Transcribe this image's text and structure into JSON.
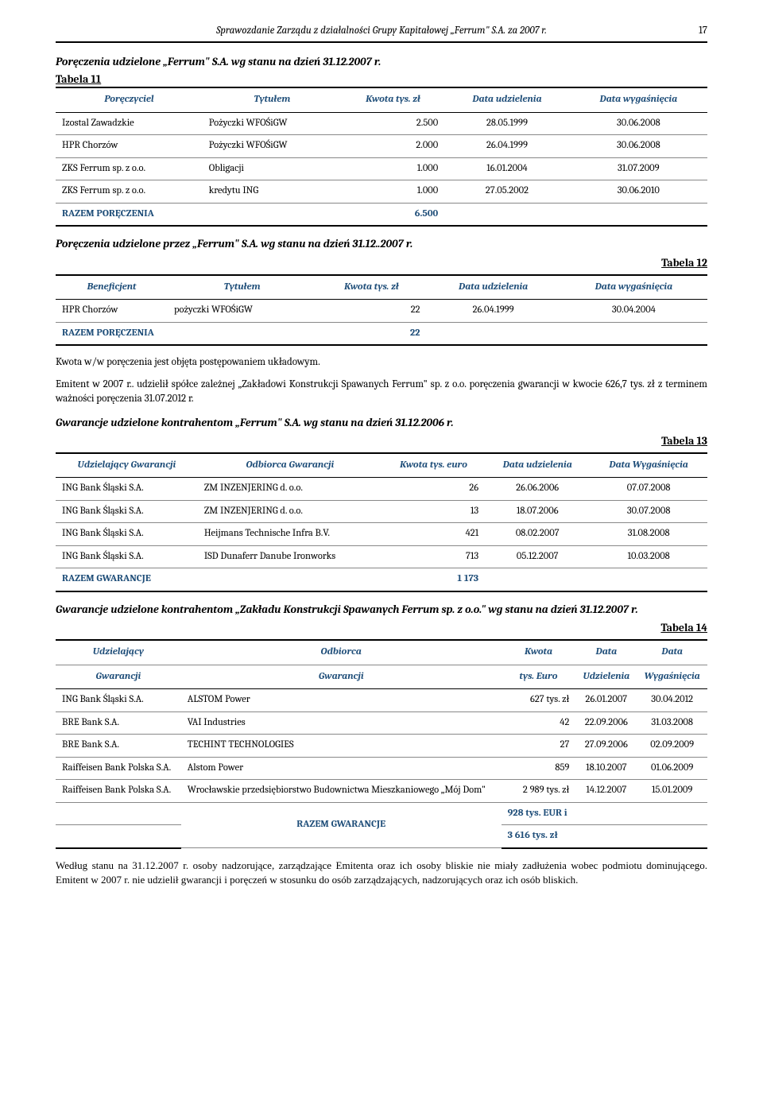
{
  "header": {
    "title": "Sprawozdanie Zarządu z działalności Grupy Kapitałowej „Ferrum\" S.A. za 2007 r.",
    "page": "17"
  },
  "section1": {
    "title": "Poręczenia udzielone „Ferrum\" S.A. wg stanu na dzień 31.12.2007 r.",
    "table_label": "Tabela 11",
    "headers": [
      "Poręczyciel",
      "Tytułem",
      "Kwota tys. zł",
      "Data udzielenia",
      "Data wygaśnięcia"
    ],
    "rows": [
      [
        "Izostal Zawadzkie",
        "Pożyczki WFOŚiGW",
        "2.500",
        "28.05.1999",
        "30.06.2008"
      ],
      [
        "HPR Chorzów",
        "Pożyczki WFOŚiGW",
        "2.000",
        "26.04.1999",
        "30.06.2008"
      ],
      [
        "ZKS Ferrum sp. z o.o.",
        "Obligacji",
        "1.000",
        "16.01.2004",
        "31.07.2009"
      ],
      [
        "ZKS Ferrum sp. z o.o.",
        "kredytu ING",
        "1.000",
        "27.05.2002",
        "30.06.2010"
      ]
    ],
    "razem_label": "RAZEM PORĘCZENIA",
    "razem_val": "6.500"
  },
  "section2": {
    "title": "Poręczenia udzielone przez „Ferrum\" S.A. wg stanu na dzień 31.12..2007 r.",
    "table_label": "Tabela 12",
    "headers": [
      "Beneficjent",
      "Tytułem",
      "Kwota tys. zł",
      "Data udzielenia",
      "Data wygaśnięcia"
    ],
    "rows": [
      [
        "HPR Chorzów",
        "pożyczki WFOŚiGW",
        "22",
        "26.04.1999",
        "30.04.2004"
      ]
    ],
    "razem_label": "RAZEM PORĘCZENIA",
    "razem_val": "22"
  },
  "para1": "Kwota w/w poręczenia jest objęta postępowaniem układowym.",
  "para2": "Emitent w 2007 r.. udzielił spółce zależnej „Zakładowi Konstrukcji Spawanych Ferrum\" sp. z  o.o. poręczenia gwarancji w kwocie 626,7 tys. zł z terminem ważności poręczenia 31.07.2012 r.",
  "section3": {
    "title": "Gwarancje udzielone kontrahentom „Ferrum\" S.A. wg stanu na dzień 31.12.2006 r.",
    "table_label": "Tabela 13",
    "headers": [
      "Udzielający Gwarancji",
      "Odbiorca Gwarancji",
      "Kwota tys. euro",
      "Data udzielenia",
      "Data Wygaśnięcia"
    ],
    "rows": [
      [
        "ING Bank Śląski S.A.",
        "ZM INZENJERING d. o.o.",
        "26",
        "26.06.2006",
        "07.07.2008"
      ],
      [
        "ING Bank Śląski S.A.",
        "ZM INZENJERING d. o.o.",
        "13",
        "18.07.2006",
        "30.07.2008"
      ],
      [
        "ING Bank Śląski S.A.",
        "Heijmans Technische Infra B.V.",
        "421",
        "08.02.2007",
        "31.08.2008"
      ],
      [
        "ING Bank Śląski S.A.",
        "ISD Dunaferr Danube Ironworks",
        "713",
        "05.12.2007",
        "10.03.2008"
      ]
    ],
    "razem_label": "RAZEM GWARANCJE",
    "razem_val": "1 173"
  },
  "section4": {
    "title": "Gwarancje udzielone kontrahentom „Zakładu Konstrukcji Spawanych Ferrum sp. z o.o.\" wg stanu na dzień 31.12.2007 r.",
    "table_label": "Tabela 14",
    "headers_r1": [
      "Udzielający",
      "Odbiorca",
      "Kwota",
      "Data",
      "Data"
    ],
    "headers_r2": [
      "Gwarancji",
      "Gwarancji",
      "tys. Euro",
      "Udzielenia",
      "Wygaśnięcia"
    ],
    "rows": [
      [
        "ING Bank Śląski S.A.",
        "ALSTOM  Power",
        "627 tys. zł",
        "26.01.2007",
        "30.04.2012"
      ],
      [
        "BRE Bank S.A.",
        "VAI Industries",
        "42",
        "22.09.2006",
        "31.03.2008"
      ],
      [
        "BRE Bank S.A.",
        "TECHINT TECHNOLOGIES",
        "27",
        "27.09.2006",
        "02.09.2009"
      ],
      [
        "Raiffeisen Bank Polska S.A.",
        "Alstom Power",
        "859",
        "18.10.2007",
        "01.06.2009"
      ],
      [
        "Raiffeisen Bank Polska S.A.",
        "Wrocławskie przedsiębiorstwo Budownictwa Mieszkaniowego „Mój Dom\"",
        "2 989 tys. zł",
        "14.12.2007",
        "15.01.2009"
      ]
    ],
    "razem_label": "RAZEM GWARANCJE",
    "razem_val1": "928 tys. EUR  i",
    "razem_val2": "3 616 tys. zł"
  },
  "footer": "Według stanu na 31.12.2007 r. osoby nadzorujące, zarządzające Emitenta oraz ich osoby bliskie nie miały zadłużenia wobec podmiotu dominującego. Emitent w 2007 r. nie udzielił gwarancji i poręczeń w stosunku do osób zarządzających, nadzorujących oraz ich osób bliskich."
}
